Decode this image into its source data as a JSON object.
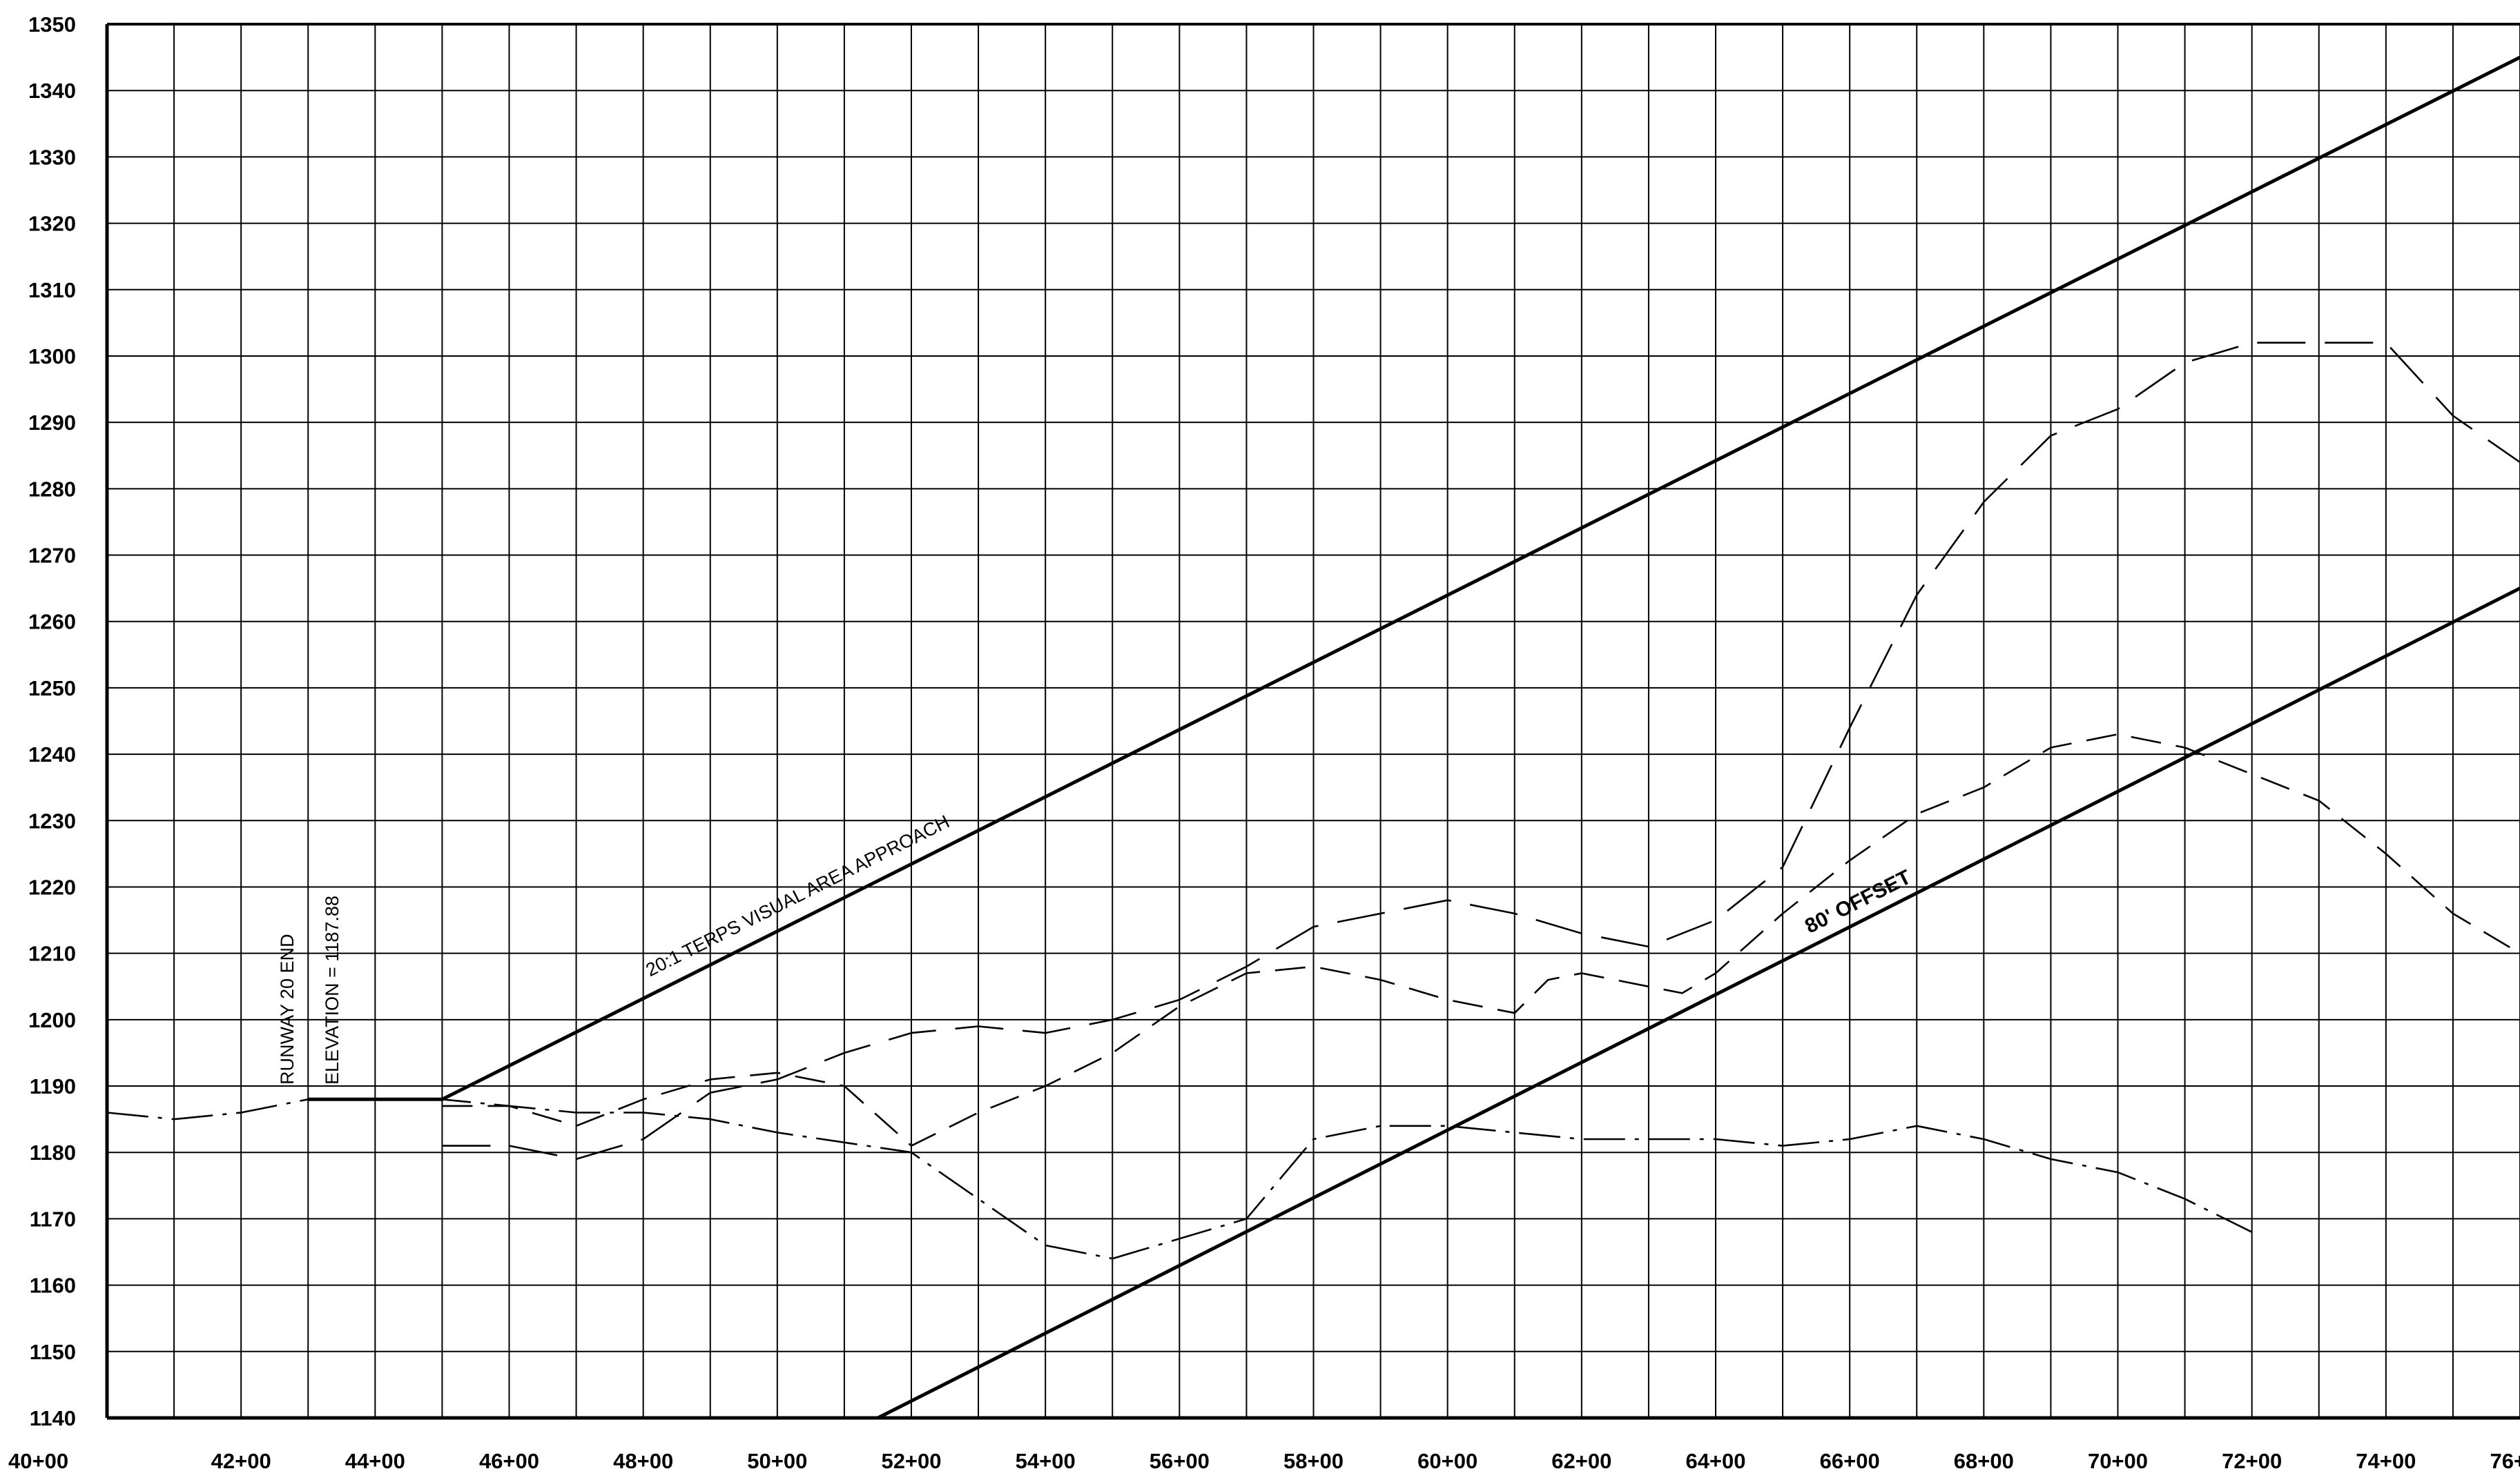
{
  "chart_data": {
    "type": "line",
    "title": "",
    "xlabel": "",
    "ylabel": "",
    "xlim": [
      40,
      76
    ],
    "ylim": [
      1140,
      1350
    ],
    "grid": true,
    "x_tick_labels": [
      "40+00",
      "42+00",
      "44+00",
      "46+00",
      "48+00",
      "50+00",
      "52+00",
      "54+00",
      "56+00",
      "58+00",
      "60+00",
      "62+00",
      "64+00",
      "66+00",
      "68+00",
      "70+00",
      "72+00",
      "74+00",
      "76+00"
    ],
    "x_tick_values": [
      40,
      42,
      44,
      46,
      48,
      50,
      52,
      54,
      56,
      58,
      60,
      62,
      64,
      66,
      68,
      70,
      72,
      74,
      76
    ],
    "y_tick_values": [
      1140,
      1150,
      1160,
      1170,
      1180,
      1190,
      1200,
      1210,
      1220,
      1230,
      1240,
      1250,
      1260,
      1270,
      1280,
      1290,
      1300,
      1310,
      1320,
      1330,
      1340,
      1350
    ],
    "annotations": {
      "runway_label": "RUNWAY 20 END",
      "elevation_label": "ELEVATION = 1187.88",
      "approach_label": "20:1 TERPS VISUAL AREA APPROACH",
      "offset_label": "80' OFFSET"
    },
    "series": [
      {
        "style": "solid-thick",
        "points": [
          [
            43,
            1188
          ],
          [
            45,
            1188
          ],
          [
            76,
            1345
          ]
        ]
      },
      {
        "style": "solid-thick",
        "points": [
          [
            51.5,
            1140
          ],
          [
            76,
            1265
          ]
        ]
      },
      {
        "style": "dash-dot",
        "points": [
          [
            40,
            1186
          ],
          [
            41,
            1185
          ],
          [
            42,
            1186
          ],
          [
            43,
            1188
          ],
          [
            45,
            1188
          ],
          [
            46,
            1187
          ],
          [
            47,
            1186
          ],
          [
            48,
            1186
          ],
          [
            49,
            1185
          ],
          [
            50,
            1183
          ],
          [
            52,
            1180
          ],
          [
            53,
            1173
          ],
          [
            54,
            1166
          ],
          [
            55,
            1164
          ],
          [
            56,
            1167
          ],
          [
            57,
            1170
          ],
          [
            58,
            1182
          ],
          [
            59,
            1184
          ],
          [
            60,
            1184
          ],
          [
            61,
            1183
          ],
          [
            62,
            1182
          ],
          [
            63,
            1182
          ],
          [
            64,
            1182
          ],
          [
            65,
            1181
          ],
          [
            66,
            1182
          ],
          [
            67,
            1184
          ],
          [
            68,
            1182
          ],
          [
            69,
            1179
          ],
          [
            70,
            1177
          ],
          [
            71,
            1173
          ],
          [
            72,
            1168
          ]
        ]
      },
      {
        "style": "dashed-long",
        "points": [
          [
            45,
            1181
          ],
          [
            46,
            1181
          ],
          [
            47,
            1179
          ],
          [
            48,
            1182
          ],
          [
            49,
            1189
          ],
          [
            50,
            1191
          ],
          [
            51,
            1195
          ],
          [
            52,
            1198
          ],
          [
            53,
            1199
          ],
          [
            54,
            1198
          ],
          [
            55,
            1200
          ],
          [
            56,
            1203
          ],
          [
            57,
            1208
          ],
          [
            58,
            1214
          ],
          [
            59,
            1216
          ],
          [
            60,
            1218
          ],
          [
            61,
            1216
          ],
          [
            62,
            1213
          ],
          [
            63,
            1211
          ],
          [
            64,
            1215
          ],
          [
            65,
            1223
          ],
          [
            66,
            1244
          ],
          [
            67,
            1264
          ],
          [
            68,
            1278
          ],
          [
            69,
            1288
          ],
          [
            70,
            1292
          ],
          [
            71,
            1299
          ],
          [
            72,
            1302
          ],
          [
            73,
            1302
          ],
          [
            74,
            1302
          ],
          [
            75,
            1291
          ],
          [
            76,
            1284
          ]
        ]
      },
      {
        "style": "dashed-medium",
        "points": [
          [
            45,
            1187
          ],
          [
            46,
            1187
          ],
          [
            47,
            1184
          ],
          [
            48,
            1188
          ],
          [
            49,
            1191
          ],
          [
            50,
            1192
          ],
          [
            51,
            1190
          ],
          [
            52,
            1181
          ],
          [
            53,
            1186
          ],
          [
            54,
            1190
          ],
          [
            55,
            1195
          ],
          [
            56,
            1202
          ],
          [
            57,
            1207
          ],
          [
            58,
            1208
          ],
          [
            59,
            1206
          ],
          [
            60,
            1203
          ],
          [
            61,
            1201
          ],
          [
            61.5,
            1206
          ],
          [
            62,
            1207
          ],
          [
            63,
            1205
          ],
          [
            63.5,
            1204
          ],
          [
            64,
            1207
          ],
          [
            65,
            1216
          ],
          [
            66,
            1224
          ],
          [
            67,
            1231
          ],
          [
            68,
            1235
          ],
          [
            69,
            1241
          ],
          [
            70,
            1243
          ],
          [
            71,
            1241
          ],
          [
            72,
            1237
          ],
          [
            73,
            1233
          ],
          [
            74,
            1225
          ],
          [
            75,
            1216
          ],
          [
            76,
            1210
          ]
        ]
      }
    ]
  }
}
